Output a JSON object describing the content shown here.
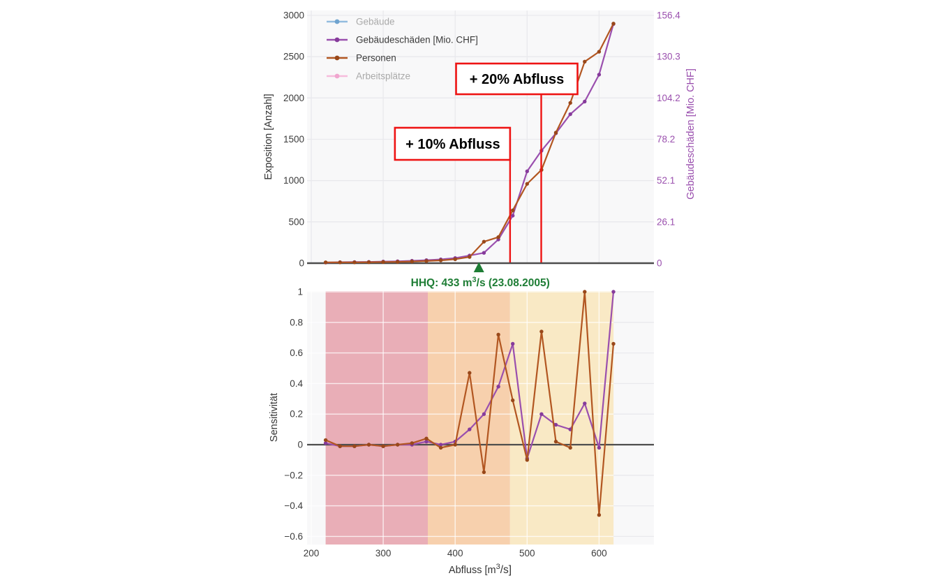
{
  "colors": {
    "purple": "#9a4fae",
    "purple_dot": "#863b9b",
    "brown": "#b25621",
    "brown_dot": "#99481a",
    "blue": "#93bcdf",
    "blue_dot": "#6fa3cf",
    "pink": "#f6bcdc",
    "pink_dot": "#f0a6cf",
    "red": "#ee1414",
    "green": "#1e7d35",
    "band_pink": "#e9aeb7",
    "band_orange": "#f7d0ad",
    "band_yellow": "#f9e9c5",
    "grid_gray": "#e9e9ed",
    "plot_bg": "#f8f8f9",
    "zero_line": "#4d4d4d",
    "disabled_text": "#a9a9a9",
    "enabled_text": "#3b3b3b"
  },
  "legend": {
    "items": [
      {
        "label": "Gebäude",
        "color_key": "blue",
        "dot_key": "blue_dot",
        "enabled": false
      },
      {
        "label": "Gebäudeschäden [Mio. CHF]",
        "color_key": "purple",
        "dot_key": "purple_dot",
        "enabled": true
      },
      {
        "label": "Personen",
        "color_key": "brown",
        "dot_key": "brown_dot",
        "enabled": true
      },
      {
        "label": "Arbeitsplätze",
        "color_key": "pink",
        "dot_key": "pink_dot",
        "enabled": false
      }
    ]
  },
  "chart_data": [
    {
      "type": "line",
      "title": "",
      "x": [
        220,
        240,
        260,
        280,
        300,
        320,
        340,
        360,
        380,
        400,
        420,
        440,
        460,
        480,
        500,
        520,
        540,
        560,
        580,
        600,
        620
      ],
      "x_range": [
        194,
        676
      ],
      "x_ticks_hidden": true,
      "grid": true,
      "y_left": {
        "label": "Exposition [Anzahl]",
        "range": [
          0,
          3000
        ],
        "ticks": [
          "0",
          "500",
          "1000",
          "1500",
          "2000",
          "2500",
          "3000"
        ]
      },
      "y_right": {
        "label": "Gebäudeschäden [Mio. CHF]",
        "range": [
          0,
          156.4
        ],
        "ticks": [
          "0",
          "26.1",
          "52.1",
          "78.2",
          "104.2",
          "130.3",
          "156.4"
        ]
      },
      "series": [
        {
          "name": "Gebäude",
          "axis": "left",
          "visible": false,
          "values": null
        },
        {
          "name": "Gebäudeschäden [Mio. CHF]",
          "axis": "right",
          "visible": true,
          "values": [
            0.4,
            0.6,
            0.7,
            0.8,
            1.0,
            1.2,
            1.5,
            1.9,
            2.4,
            3.2,
            4.8,
            6.5,
            15,
            30,
            58,
            71,
            82,
            94,
            102,
            119,
            151
          ]
        },
        {
          "name": "Personen",
          "axis": "left",
          "visible": true,
          "values": [
            10,
            10,
            10,
            12,
            14,
            16,
            20,
            26,
            34,
            48,
            75,
            260,
            315,
            640,
            960,
            1130,
            1580,
            1940,
            2440,
            2560,
            2900
          ]
        },
        {
          "name": "Arbeitsplätze",
          "axis": "left",
          "visible": false,
          "values": null
        }
      ],
      "annotations": {
        "plus10": {
          "label": "+ 10% Abfluss",
          "x": 476.3
        },
        "plus20": {
          "label": "+ 20% Abfluss",
          "x": 519.6
        },
        "hhq": {
          "text_parts": [
            "HHQ: 433 m",
            "3",
            "/s (23.08.2005)"
          ],
          "x": 433
        }
      }
    },
    {
      "type": "line",
      "title": "",
      "x": [
        220,
        240,
        260,
        280,
        300,
        320,
        340,
        360,
        380,
        400,
        420,
        440,
        460,
        480,
        500,
        520,
        540,
        560,
        580,
        600,
        620
      ],
      "x_range": [
        194,
        676
      ],
      "y": {
        "label": "Sensitivität",
        "range": [
          -0.65,
          1
        ],
        "ticks": [
          "1",
          "0.8",
          "0.6",
          "0.4",
          "0.2",
          "0",
          "−0.2",
          "−0.4",
          "−0.6"
        ],
        "tick_values": [
          1,
          0.8,
          0.6,
          0.4,
          0.2,
          0,
          -0.2,
          -0.4,
          -0.6
        ]
      },
      "x_axis": {
        "label_parts": [
          "Abfluss [m",
          "3",
          "/s]"
        ],
        "ticks": [
          "200",
          "300",
          "400",
          "500",
          "600"
        ],
        "tick_values": [
          200,
          300,
          400,
          500,
          600
        ]
      },
      "bands": [
        {
          "from": 220,
          "to": 362,
          "color_key": "band_pink"
        },
        {
          "from": 362,
          "to": 476.3,
          "color_key": "band_orange"
        },
        {
          "from": 476.3,
          "to": 620,
          "color_key": "band_yellow"
        }
      ],
      "series": [
        {
          "name": "Gebäudeschäden [Mio. CHF]",
          "color_key": "purple",
          "values": [
            0.01,
            -0.01,
            -0.01,
            0.0,
            -0.01,
            0.0,
            0.0,
            0.02,
            0.0,
            0.02,
            0.1,
            0.2,
            0.38,
            0.66,
            -0.09,
            0.2,
            0.13,
            0.1,
            0.27,
            -0.02,
            1.0
          ]
        },
        {
          "name": "Personen",
          "color_key": "brown",
          "values": [
            0.03,
            -0.01,
            -0.01,
            0.0,
            -0.01,
            0.0,
            0.01,
            0.04,
            -0.02,
            0.0,
            0.47,
            -0.18,
            0.72,
            0.29,
            -0.1,
            0.74,
            0.02,
            -0.02,
            1.0,
            -0.46,
            0.66
          ]
        }
      ]
    }
  ]
}
